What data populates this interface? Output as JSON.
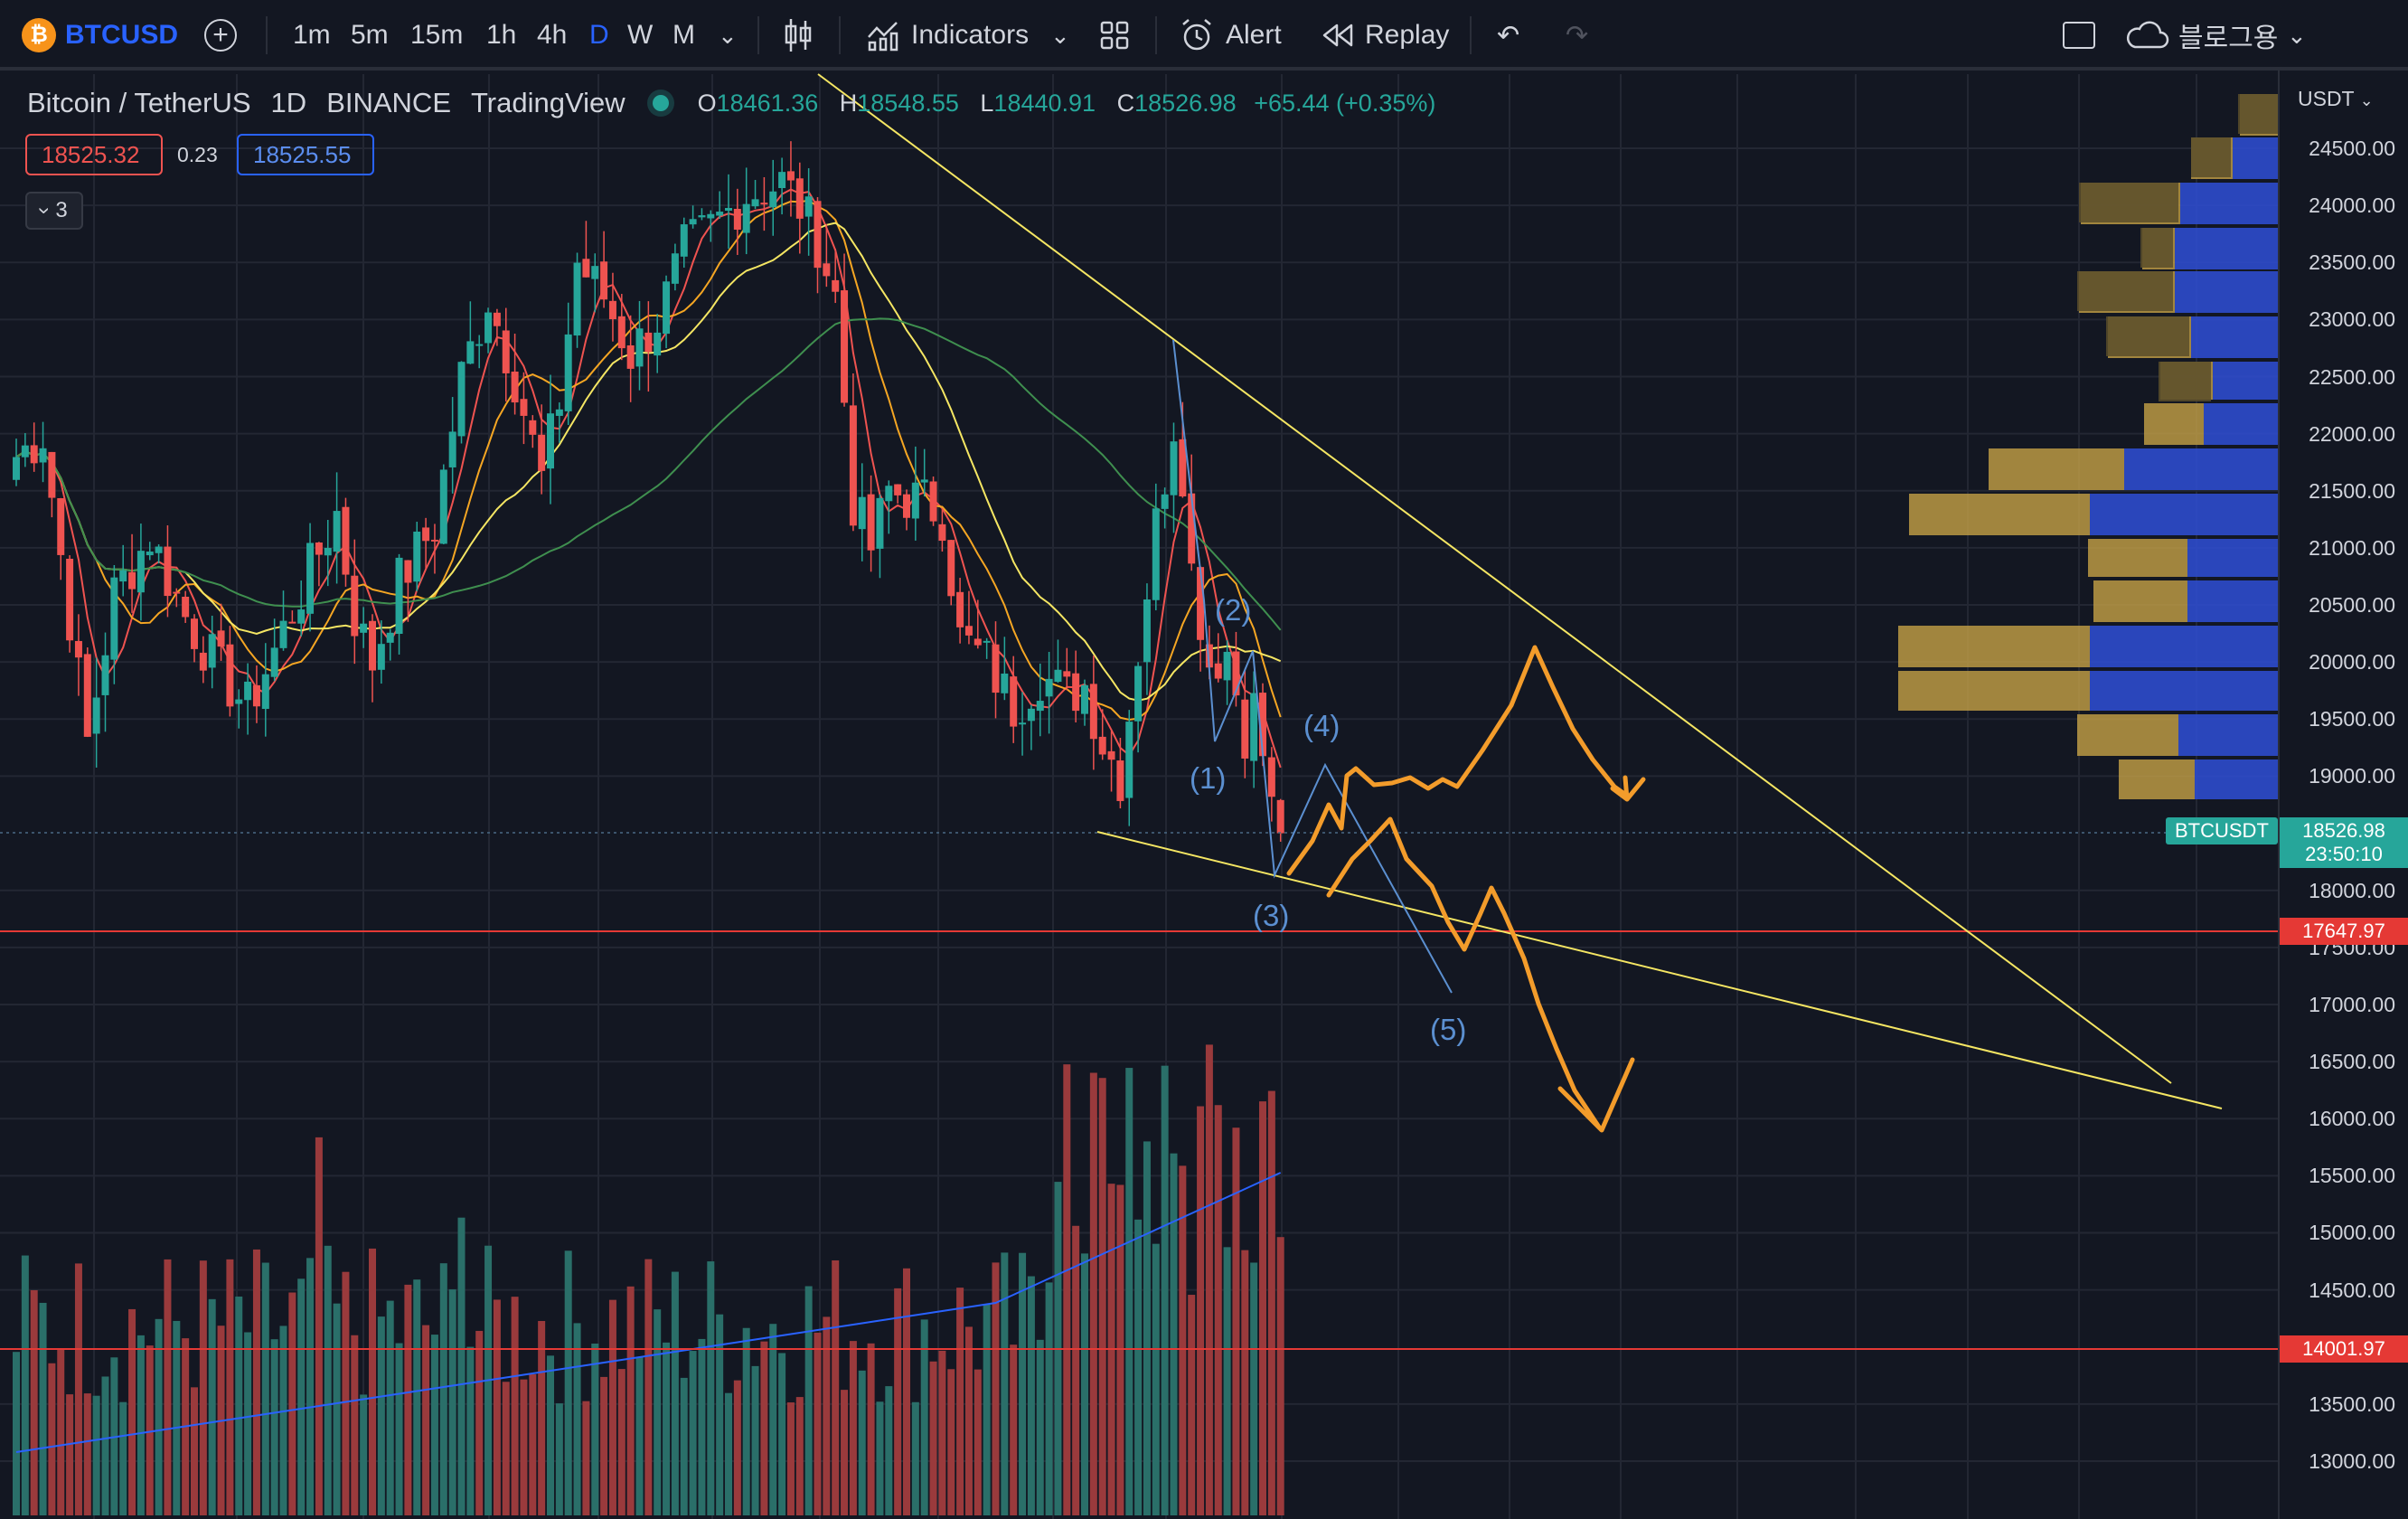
{
  "toolbar": {
    "symbol": "BTCUSD",
    "logo_glyph": "₿",
    "add_glyph": "+",
    "intervals": [
      "1m",
      "5m",
      "15m",
      "1h",
      "4h",
      "D",
      "W",
      "M"
    ],
    "active_interval": "D",
    "indicators_label": "Indicators",
    "alert_label": "Alert",
    "replay_label": "Replay",
    "cloud_label": "블로그용",
    "chevron": "⌄",
    "undo_glyph": "↶",
    "redo_glyph": "↷"
  },
  "legend": {
    "title": "Bitcoin / TetherUS",
    "interval": "1D",
    "exchange": "BINANCE",
    "source": "TradingView",
    "open_label": "O",
    "open": "18461.36",
    "high_label": "H",
    "high": "18548.55",
    "low_label": "L",
    "low": "18440.91",
    "close_label": "C",
    "close": "18526.98",
    "change": "+65.44 (+0.35%)",
    "sell_price": "18525.32",
    "spread": "0.23",
    "buy_price": "18525.55",
    "indicators_count": "3",
    "collapse_glyph": "›"
  },
  "price_scale": {
    "currency": "USDT",
    "labels": [
      "24500.00",
      "24000.00",
      "23500.00",
      "23000.00",
      "22500.00",
      "22000.00",
      "21500.00",
      "21000.00",
      "20500.00",
      "20000.00",
      "19500.00",
      "19000.00",
      "18000.00",
      "17500.00",
      "17000.00",
      "16500.00",
      "16000.00",
      "15500.00",
      "15000.00",
      "14500.00",
      "13500.00",
      "13000.00"
    ],
    "last_symbol": "BTCUSDT",
    "last_price": "18526.98",
    "countdown": "23:50:10",
    "support_price": "17647.97",
    "volume_line_value": "14001.97"
  },
  "waves": [
    "(1)",
    "(2)",
    "(3)",
    "(4)",
    "(5)"
  ],
  "colors": {
    "background": "#131722",
    "up": "#26a69a",
    "down": "#ef5350",
    "trendline": "#f5e663",
    "drawing": "#f39c2b",
    "wave_label": "#5b8fd0",
    "hline": "#e53935"
  }
}
